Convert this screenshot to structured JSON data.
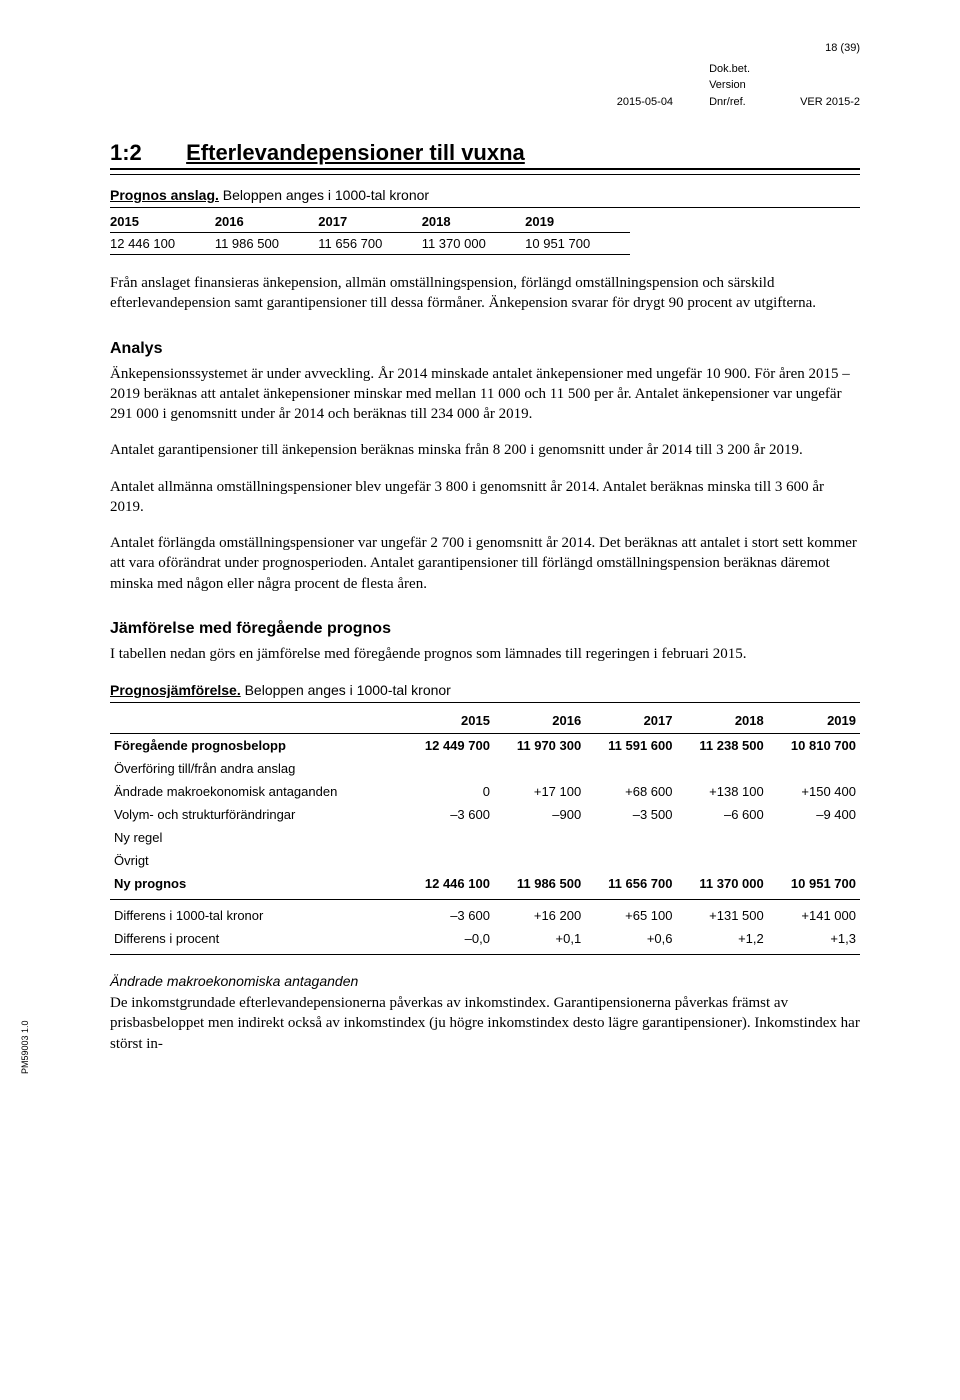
{
  "header": {
    "page_num": "18 (39)",
    "date": "2015-05-04",
    "labels": {
      "dokbet": "Dok.bet.",
      "version": "Version",
      "dnrref": "Dnr/ref."
    },
    "ver": "VER 2015-2"
  },
  "section": {
    "num": "1:2",
    "title": "Efterlevandepensioner till vuxna"
  },
  "table1": {
    "title_bold": "Prognos anslag.",
    "title_rest": " Beloppen anges i 1000-tal kronor",
    "headers": [
      "2015",
      "2016",
      "2017",
      "2018",
      "2019"
    ],
    "row": [
      "12 446 100",
      "11 986 500",
      "11 656 700",
      "11 370 000",
      "10 951 700"
    ]
  },
  "para1": "Från anslaget finansieras änkepension, allmän omställningspension, förlängd omställningspension och särskild efterlevandepension samt garantipensioner till dessa förmåner. Änkepension svarar för drygt 90 procent av utgifterna.",
  "analys": {
    "heading": "Analys",
    "p1": "Änkepensionssystemet är under avveckling. År 2014 minskade antalet änkepensioner med ungefär 10 900. För åren 2015 – 2019 beräknas att antalet änkepensioner minskar med mellan 11 000 och 11 500 per år. Antalet änkepensioner var ungefär 291 000 i genomsnitt under år 2014 och beräknas till 234 000 år 2019.",
    "p2": "Antalet garantipensioner till änkepension beräknas minska från 8 200 i genomsnitt under år 2014 till 3 200 år 2019.",
    "p3": "Antalet allmänna omställningspensioner blev ungefär 3 800 i genomsnitt år 2014. Antalet beräknas minska till 3 600 år 2019.",
    "p4": "Antalet förlängda omställningspensioner var ungefär 2 700 i genomsnitt år 2014. Det beräknas att antalet i stort sett kommer att vara oförändrat under prognosperioden. Antalet garantipensioner till förlängd omställningspension beräknas däremot minska med någon eller några procent de flesta åren."
  },
  "jamfor": {
    "heading": "Jämförelse med föregående prognos",
    "intro": "I tabellen nedan görs en jämförelse med föregående prognos som lämnades till regeringen i februari 2015."
  },
  "table2": {
    "title_bold": "Prognosjämförelse.",
    "title_rest": " Beloppen anges i 1000-tal kronor",
    "headers": [
      "",
      "2015",
      "2016",
      "2017",
      "2018",
      "2019"
    ],
    "rows": [
      {
        "label": "Föregående prognosbelopp",
        "vals": [
          "12 449 700",
          "11 970 300",
          "11 591 600",
          "11 238 500",
          "10 810 700"
        ],
        "bold": true
      },
      {
        "label": "Överföring till/från andra anslag",
        "vals": [
          "",
          "",
          "",
          "",
          ""
        ]
      },
      {
        "label": "Ändrade makroekonomisk antaganden",
        "vals": [
          "0",
          "+17 100",
          "+68 600",
          "+138 100",
          "+150 400"
        ]
      },
      {
        "label": "Volym- och strukturförändringar",
        "vals": [
          "–3 600",
          "–900",
          "–3 500",
          "–6 600",
          "–9 400"
        ]
      },
      {
        "label": "Ny regel",
        "vals": [
          "",
          "",
          "",
          "",
          ""
        ]
      },
      {
        "label": "Övrigt",
        "vals": [
          "",
          "",
          "",
          "",
          ""
        ]
      },
      {
        "label": "Ny prognos",
        "vals": [
          "12 446 100",
          "11 986 500",
          "11 656 700",
          "11 370 000",
          "10 951 700"
        ],
        "bold": true
      }
    ],
    "diff_rows": [
      {
        "label": "Differens i 1000-tal kronor",
        "vals": [
          "–3 600",
          "+16 200",
          "+65 100",
          "+131 500",
          "+141 000"
        ]
      },
      {
        "label": "Differens i procent",
        "vals": [
          "–0,0",
          "+0,1",
          "+0,6",
          "+1,2",
          "+1,3"
        ]
      }
    ]
  },
  "sub": {
    "heading": "Ändrade makroekonomiska antaganden",
    "p": "De inkomstgrundade efterlevandepensionerna påverkas av inkomstindex. Garantipensionerna påverkas främst av prisbasbeloppet men indirekt också av inkomstindex (ju högre inkomstindex desto lägre garantipensioner). Inkomstindex har störst in-"
  },
  "side_code": "PM59003 1.0"
}
